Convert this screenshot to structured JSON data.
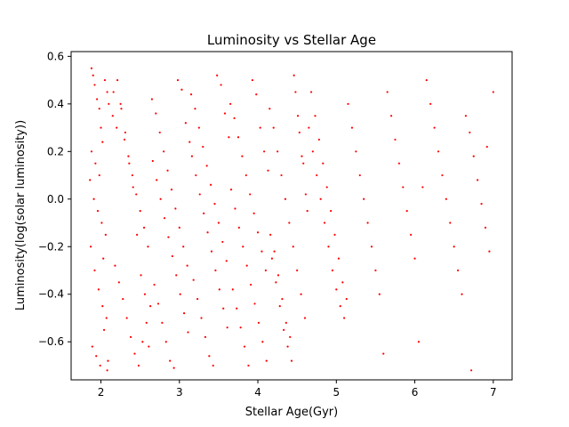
{
  "chart_data": {
    "type": "scatter",
    "title": "Luminosity vs Stellar Age",
    "xlabel": "Stellar Age(Gyr)",
    "ylabel": "Luminosity(log(solar luminosity))",
    "xlim": [
      1.62,
      7.24
    ],
    "ylim": [
      -0.76,
      0.62
    ],
    "xticks": [
      2,
      3,
      4,
      5,
      6,
      7
    ],
    "yticks": [
      -0.6,
      -0.4,
      -0.2,
      0.0,
      0.2,
      0.4,
      0.6
    ],
    "xtick_labels": [
      "2",
      "3",
      "4",
      "5",
      "6",
      "7"
    ],
    "ytick_labels": [
      "−0.6",
      "−0.4",
      "−0.2",
      "0.0",
      "0.2",
      "0.4",
      "0.6"
    ],
    "grid": false,
    "legend": "none",
    "marker_color": "#ff0000",
    "series": [
      {
        "x": [
          1.88,
          1.9,
          1.92,
          1.95,
          1.98,
          2.0,
          2.02,
          2.05,
          2.08,
          2.1,
          1.87,
          1.92,
          1.97,
          2.02,
          2.07,
          1.89,
          1.94,
          1.99,
          2.04,
          2.09,
          1.86,
          1.91,
          1.96,
          2.01,
          2.06,
          1.88,
          1.93,
          1.98,
          2.03,
          2.08,
          2.15,
          2.2,
          2.25,
          2.3,
          2.35,
          2.4,
          2.45,
          2.5,
          2.55,
          2.6,
          2.18,
          2.23,
          2.28,
          2.33,
          2.38,
          2.43,
          2.48,
          2.53,
          2.58,
          2.63,
          2.16,
          2.21,
          2.26,
          2.31,
          2.36,
          2.41,
          2.46,
          2.51,
          2.56,
          2.61,
          2.65,
          2.7,
          2.75,
          2.8,
          2.85,
          2.9,
          2.95,
          3.0,
          3.05,
          3.1,
          2.68,
          2.73,
          2.78,
          2.83,
          2.88,
          2.93,
          2.98,
          3.03,
          3.08,
          3.13,
          2.66,
          2.71,
          2.76,
          2.81,
          2.86,
          2.91,
          2.96,
          3.01,
          3.06,
          3.11,
          3.15,
          3.2,
          3.25,
          3.3,
          3.35,
          3.4,
          3.45,
          3.5,
          3.55,
          3.6,
          3.18,
          3.23,
          3.28,
          3.33,
          3.38,
          3.43,
          3.48,
          3.53,
          3.58,
          3.63,
          3.16,
          3.21,
          3.26,
          3.31,
          3.36,
          3.41,
          3.46,
          3.51,
          3.56,
          3.61,
          3.65,
          3.7,
          3.75,
          3.8,
          3.85,
          3.9,
          3.95,
          4.0,
          4.05,
          4.1,
          3.68,
          3.73,
          3.78,
          3.83,
          3.88,
          3.93,
          3.98,
          4.03,
          4.08,
          4.13,
          3.66,
          3.71,
          3.76,
          3.81,
          3.86,
          3.91,
          3.96,
          4.01,
          4.06,
          4.11,
          4.15,
          4.2,
          4.25,
          4.3,
          4.35,
          4.4,
          4.45,
          4.5,
          4.55,
          4.6,
          4.18,
          4.23,
          4.28,
          4.33,
          4.38,
          4.43,
          4.48,
          4.53,
          4.58,
          4.63,
          4.16,
          4.21,
          4.26,
          4.31,
          4.36,
          4.41,
          4.46,
          4.51,
          4.56,
          4.61,
          4.65,
          4.7,
          4.75,
          4.8,
          4.85,
          4.9,
          4.95,
          5.0,
          5.05,
          5.1,
          4.68,
          4.73,
          4.78,
          4.83,
          4.88,
          4.93,
          4.98,
          5.03,
          5.08,
          5.13,
          5.15,
          5.2,
          5.25,
          5.3,
          5.35,
          5.4,
          5.45,
          5.5,
          5.55,
          5.6,
          5.65,
          5.7,
          5.75,
          5.8,
          5.85,
          5.9,
          5.95,
          6.0,
          6.05,
          6.1,
          6.15,
          6.2,
          6.25,
          6.3,
          6.35,
          6.4,
          6.45,
          6.5,
          6.55,
          6.6,
          6.65,
          6.7,
          6.75,
          6.8,
          6.85,
          6.9,
          6.95,
          7.0,
          6.72,
          6.92
        ],
        "y": [
          0.55,
          0.52,
          0.48,
          0.42,
          0.38,
          0.3,
          0.24,
          0.5,
          0.45,
          0.4,
          -0.2,
          -0.3,
          -0.38,
          -0.45,
          -0.5,
          -0.62,
          -0.66,
          -0.7,
          -0.55,
          -0.68,
          0.08,
          0.0,
          -0.05,
          -0.1,
          -0.15,
          0.2,
          0.15,
          0.1,
          -0.25,
          -0.72,
          0.35,
          0.3,
          0.4,
          0.25,
          0.18,
          0.1,
          0.02,
          -0.05,
          -0.12,
          -0.2,
          -0.28,
          -0.35,
          -0.42,
          -0.5,
          -0.58,
          -0.65,
          -0.7,
          -0.6,
          -0.52,
          -0.45,
          0.45,
          0.5,
          0.38,
          0.28,
          0.15,
          0.05,
          -0.15,
          -0.32,
          -0.4,
          -0.62,
          0.42,
          0.36,
          0.28,
          0.2,
          0.12,
          0.04,
          -0.04,
          -0.12,
          -0.2,
          -0.28,
          -0.36,
          -0.44,
          -0.52,
          -0.6,
          -0.68,
          -0.71,
          0.5,
          0.46,
          0.32,
          0.24,
          0.16,
          0.08,
          0.0,
          -0.08,
          -0.16,
          -0.24,
          -0.32,
          -0.4,
          -0.48,
          -0.56,
          0.44,
          0.38,
          0.3,
          0.22,
          0.14,
          0.06,
          -0.02,
          -0.1,
          -0.18,
          -0.26,
          -0.34,
          -0.42,
          -0.5,
          -0.58,
          -0.66,
          -0.7,
          0.52,
          0.48,
          0.36,
          0.26,
          0.18,
          0.1,
          0.02,
          -0.06,
          -0.14,
          -0.22,
          -0.3,
          -0.38,
          -0.46,
          -0.54,
          0.4,
          0.34,
          0.26,
          0.18,
          0.1,
          0.02,
          -0.06,
          -0.14,
          -0.22,
          -0.3,
          -0.38,
          -0.46,
          -0.54,
          -0.62,
          -0.7,
          0.5,
          0.44,
          0.3,
          0.2,
          0.12,
          0.04,
          -0.04,
          -0.12,
          -0.2,
          -0.28,
          -0.36,
          -0.44,
          -0.52,
          -0.6,
          -0.68,
          0.38,
          0.3,
          0.2,
          0.1,
          0.0,
          -0.1,
          -0.2,
          -0.3,
          -0.4,
          -0.5,
          -0.25,
          -0.35,
          -0.45,
          -0.55,
          -0.62,
          -0.68,
          0.45,
          0.28,
          0.15,
          -0.05,
          -0.15,
          -0.22,
          -0.32,
          -0.42,
          -0.52,
          -0.58,
          0.52,
          0.35,
          0.18,
          0.02,
          0.3,
          0.2,
          0.1,
          0.0,
          -0.1,
          -0.2,
          -0.3,
          -0.38,
          -0.45,
          -0.5,
          0.45,
          0.35,
          0.25,
          0.15,
          0.05,
          -0.05,
          -0.15,
          -0.25,
          -0.35,
          -0.42,
          0.4,
          0.3,
          0.2,
          0.1,
          0.0,
          -0.1,
          -0.2,
          -0.3,
          -0.4,
          -0.65,
          0.45,
          0.35,
          0.25,
          0.15,
          0.05,
          -0.05,
          -0.15,
          -0.25,
          -0.6,
          0.05,
          0.5,
          0.4,
          0.3,
          0.2,
          0.1,
          0.0,
          -0.1,
          -0.2,
          -0.3,
          -0.4,
          0.35,
          0.28,
          0.18,
          0.08,
          -0.02,
          -0.12,
          -0.22,
          0.45,
          -0.72,
          0.22
        ]
      }
    ]
  }
}
